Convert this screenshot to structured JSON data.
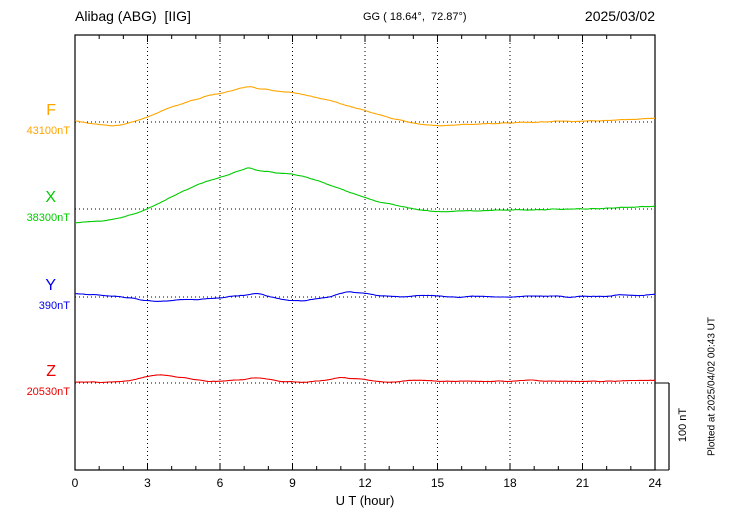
{
  "chart_data": {
    "type": "line",
    "title": "Alibag (ABG)  [IIG]",
    "station": "Alibag (ABG)",
    "institute": "IIG",
    "coords": "GG ( 18.64°,  72.87°)",
    "date": "2025/03/02",
    "xlabel": "U T (hour)",
    "x_range": [
      0,
      24
    ],
    "x_ticks": [
      0,
      3,
      6,
      9,
      12,
      15,
      18,
      21,
      24
    ],
    "grid": "dotted vertical at 3h steps, dotted horizontal baseline per component",
    "scale_bar_label": "100 nT",
    "scale_bar_nT": 100,
    "plotted_at": "Plotted at 2025/04/02 00:43 UT",
    "series": [
      {
        "name": "F",
        "baseline_label": "43100nT",
        "baseline_value_nT": 43100,
        "color": "#FFA500",
        "points": [
          [
            0,
            1
          ],
          [
            0.5,
            -1
          ],
          [
            1,
            -3
          ],
          [
            1.5,
            -4
          ],
          [
            2,
            -3
          ],
          [
            2.5,
            1
          ],
          [
            3,
            6
          ],
          [
            3.5,
            12
          ],
          [
            4,
            17
          ],
          [
            4.5,
            22
          ],
          [
            5,
            26
          ],
          [
            5.5,
            30
          ],
          [
            6,
            33
          ],
          [
            6.5,
            36
          ],
          [
            7,
            40
          ],
          [
            7.3,
            40
          ],
          [
            7.6,
            38
          ],
          [
            8,
            37
          ],
          [
            8.5,
            35
          ],
          [
            9,
            34
          ],
          [
            9.5,
            31
          ],
          [
            10,
            28
          ],
          [
            10.5,
            25
          ],
          [
            11,
            21
          ],
          [
            11.5,
            17
          ],
          [
            12,
            13
          ],
          [
            12.5,
            9
          ],
          [
            13,
            5
          ],
          [
            13.5,
            2
          ],
          [
            14,
            -1
          ],
          [
            14.5,
            -3
          ],
          [
            15,
            -4
          ],
          [
            15.5,
            -4
          ],
          [
            16,
            -3
          ],
          [
            17,
            -2
          ],
          [
            18,
            -1
          ],
          [
            19,
            0
          ],
          [
            20,
            1
          ],
          [
            21,
            1
          ],
          [
            22,
            2
          ],
          [
            23,
            3
          ],
          [
            24,
            4
          ]
        ]
      },
      {
        "name": "X",
        "baseline_label": "38300nT",
        "baseline_value_nT": 38300,
        "color": "#00CC00",
        "points": [
          [
            0,
            -16
          ],
          [
            0.5,
            -15
          ],
          [
            1,
            -14
          ],
          [
            1.5,
            -12
          ],
          [
            2,
            -9
          ],
          [
            2.5,
            -5
          ],
          [
            3,
            0
          ],
          [
            3.5,
            7
          ],
          [
            4,
            14
          ],
          [
            4.5,
            21
          ],
          [
            5,
            27
          ],
          [
            5.5,
            32
          ],
          [
            6,
            36
          ],
          [
            6.5,
            41
          ],
          [
            7,
            46
          ],
          [
            7.2,
            47
          ],
          [
            7.5,
            45
          ],
          [
            8,
            43
          ],
          [
            8.5,
            41
          ],
          [
            9,
            40
          ],
          [
            9.5,
            37
          ],
          [
            10,
            33
          ],
          [
            10.5,
            28
          ],
          [
            11,
            23
          ],
          [
            11.5,
            18
          ],
          [
            12,
            13
          ],
          [
            12.5,
            9
          ],
          [
            13,
            6
          ],
          [
            13.5,
            3
          ],
          [
            14,
            0
          ],
          [
            14.5,
            -2
          ],
          [
            15,
            -3
          ],
          [
            15.5,
            -3
          ],
          [
            16,
            -2
          ],
          [
            17,
            -2
          ],
          [
            18,
            -1
          ],
          [
            19,
            -1
          ],
          [
            20,
            0
          ],
          [
            21,
            0
          ],
          [
            22,
            1
          ],
          [
            23,
            2
          ],
          [
            24,
            3
          ]
        ]
      },
      {
        "name": "Y",
        "baseline_label": "390nT",
        "baseline_value_nT": 390,
        "color": "#0000EE",
        "points": [
          [
            0,
            4
          ],
          [
            0.5,
            3
          ],
          [
            1,
            2
          ],
          [
            1.5,
            1
          ],
          [
            2,
            0
          ],
          [
            2.5,
            -2
          ],
          [
            3,
            -4
          ],
          [
            3.5,
            -5
          ],
          [
            4,
            -4
          ],
          [
            4.5,
            -3
          ],
          [
            5,
            -3
          ],
          [
            5.5,
            -2
          ],
          [
            6,
            -1
          ],
          [
            6.5,
            1
          ],
          [
            7,
            2
          ],
          [
            7.5,
            4
          ],
          [
            8,
            1
          ],
          [
            8.5,
            -2
          ],
          [
            9,
            -4
          ],
          [
            9.5,
            -4
          ],
          [
            10,
            -2
          ],
          [
            10.5,
            0
          ],
          [
            11,
            4
          ],
          [
            11.3,
            6
          ],
          [
            11.6,
            5
          ],
          [
            12,
            4
          ],
          [
            12.5,
            2
          ],
          [
            13,
            1
          ],
          [
            13.5,
            0
          ],
          [
            14,
            1
          ],
          [
            14.5,
            2
          ],
          [
            15,
            1
          ],
          [
            15.5,
            0
          ],
          [
            16,
            0
          ],
          [
            16.5,
            1
          ],
          [
            17,
            1
          ],
          [
            17.5,
            0
          ],
          [
            18,
            0
          ],
          [
            18.5,
            1
          ],
          [
            19,
            1
          ],
          [
            19.5,
            1
          ],
          [
            20,
            1
          ],
          [
            20.5,
            0
          ],
          [
            21,
            1
          ],
          [
            21.5,
            1
          ],
          [
            22,
            1
          ],
          [
            22.5,
            2
          ],
          [
            23,
            2
          ],
          [
            23.5,
            2
          ],
          [
            24,
            3
          ]
        ]
      },
      {
        "name": "Z",
        "baseline_label": "20530nT",
        "baseline_value_nT": 20530,
        "color": "#EE0000",
        "points": [
          [
            0,
            1
          ],
          [
            0.5,
            1
          ],
          [
            1,
            1
          ],
          [
            1.5,
            1
          ],
          [
            2,
            2
          ],
          [
            2.5,
            4
          ],
          [
            3,
            7
          ],
          [
            3.5,
            9
          ],
          [
            4,
            8
          ],
          [
            4.5,
            6
          ],
          [
            5,
            4
          ],
          [
            5.5,
            2
          ],
          [
            6,
            2
          ],
          [
            6.5,
            3
          ],
          [
            7,
            4
          ],
          [
            7.5,
            6
          ],
          [
            8,
            4
          ],
          [
            8.5,
            2
          ],
          [
            9,
            1
          ],
          [
            9.5,
            1
          ],
          [
            10,
            2
          ],
          [
            10.5,
            4
          ],
          [
            11,
            6
          ],
          [
            11.5,
            5
          ],
          [
            12,
            4
          ],
          [
            12.5,
            2
          ],
          [
            13,
            1
          ],
          [
            13.5,
            2
          ],
          [
            14,
            3
          ],
          [
            14.5,
            3
          ],
          [
            15,
            2
          ],
          [
            15.5,
            2
          ],
          [
            16,
            2
          ],
          [
            16.5,
            2
          ],
          [
            17,
            2
          ],
          [
            17.5,
            2
          ],
          [
            18,
            2
          ],
          [
            18.5,
            3
          ],
          [
            19,
            3
          ],
          [
            19.5,
            2
          ],
          [
            20,
            2
          ],
          [
            20.5,
            2
          ],
          [
            21,
            2
          ],
          [
            21.5,
            2
          ],
          [
            22,
            2
          ],
          [
            22.5,
            2
          ],
          [
            23,
            3
          ],
          [
            23.5,
            3
          ],
          [
            24,
            3
          ]
        ]
      }
    ]
  }
}
